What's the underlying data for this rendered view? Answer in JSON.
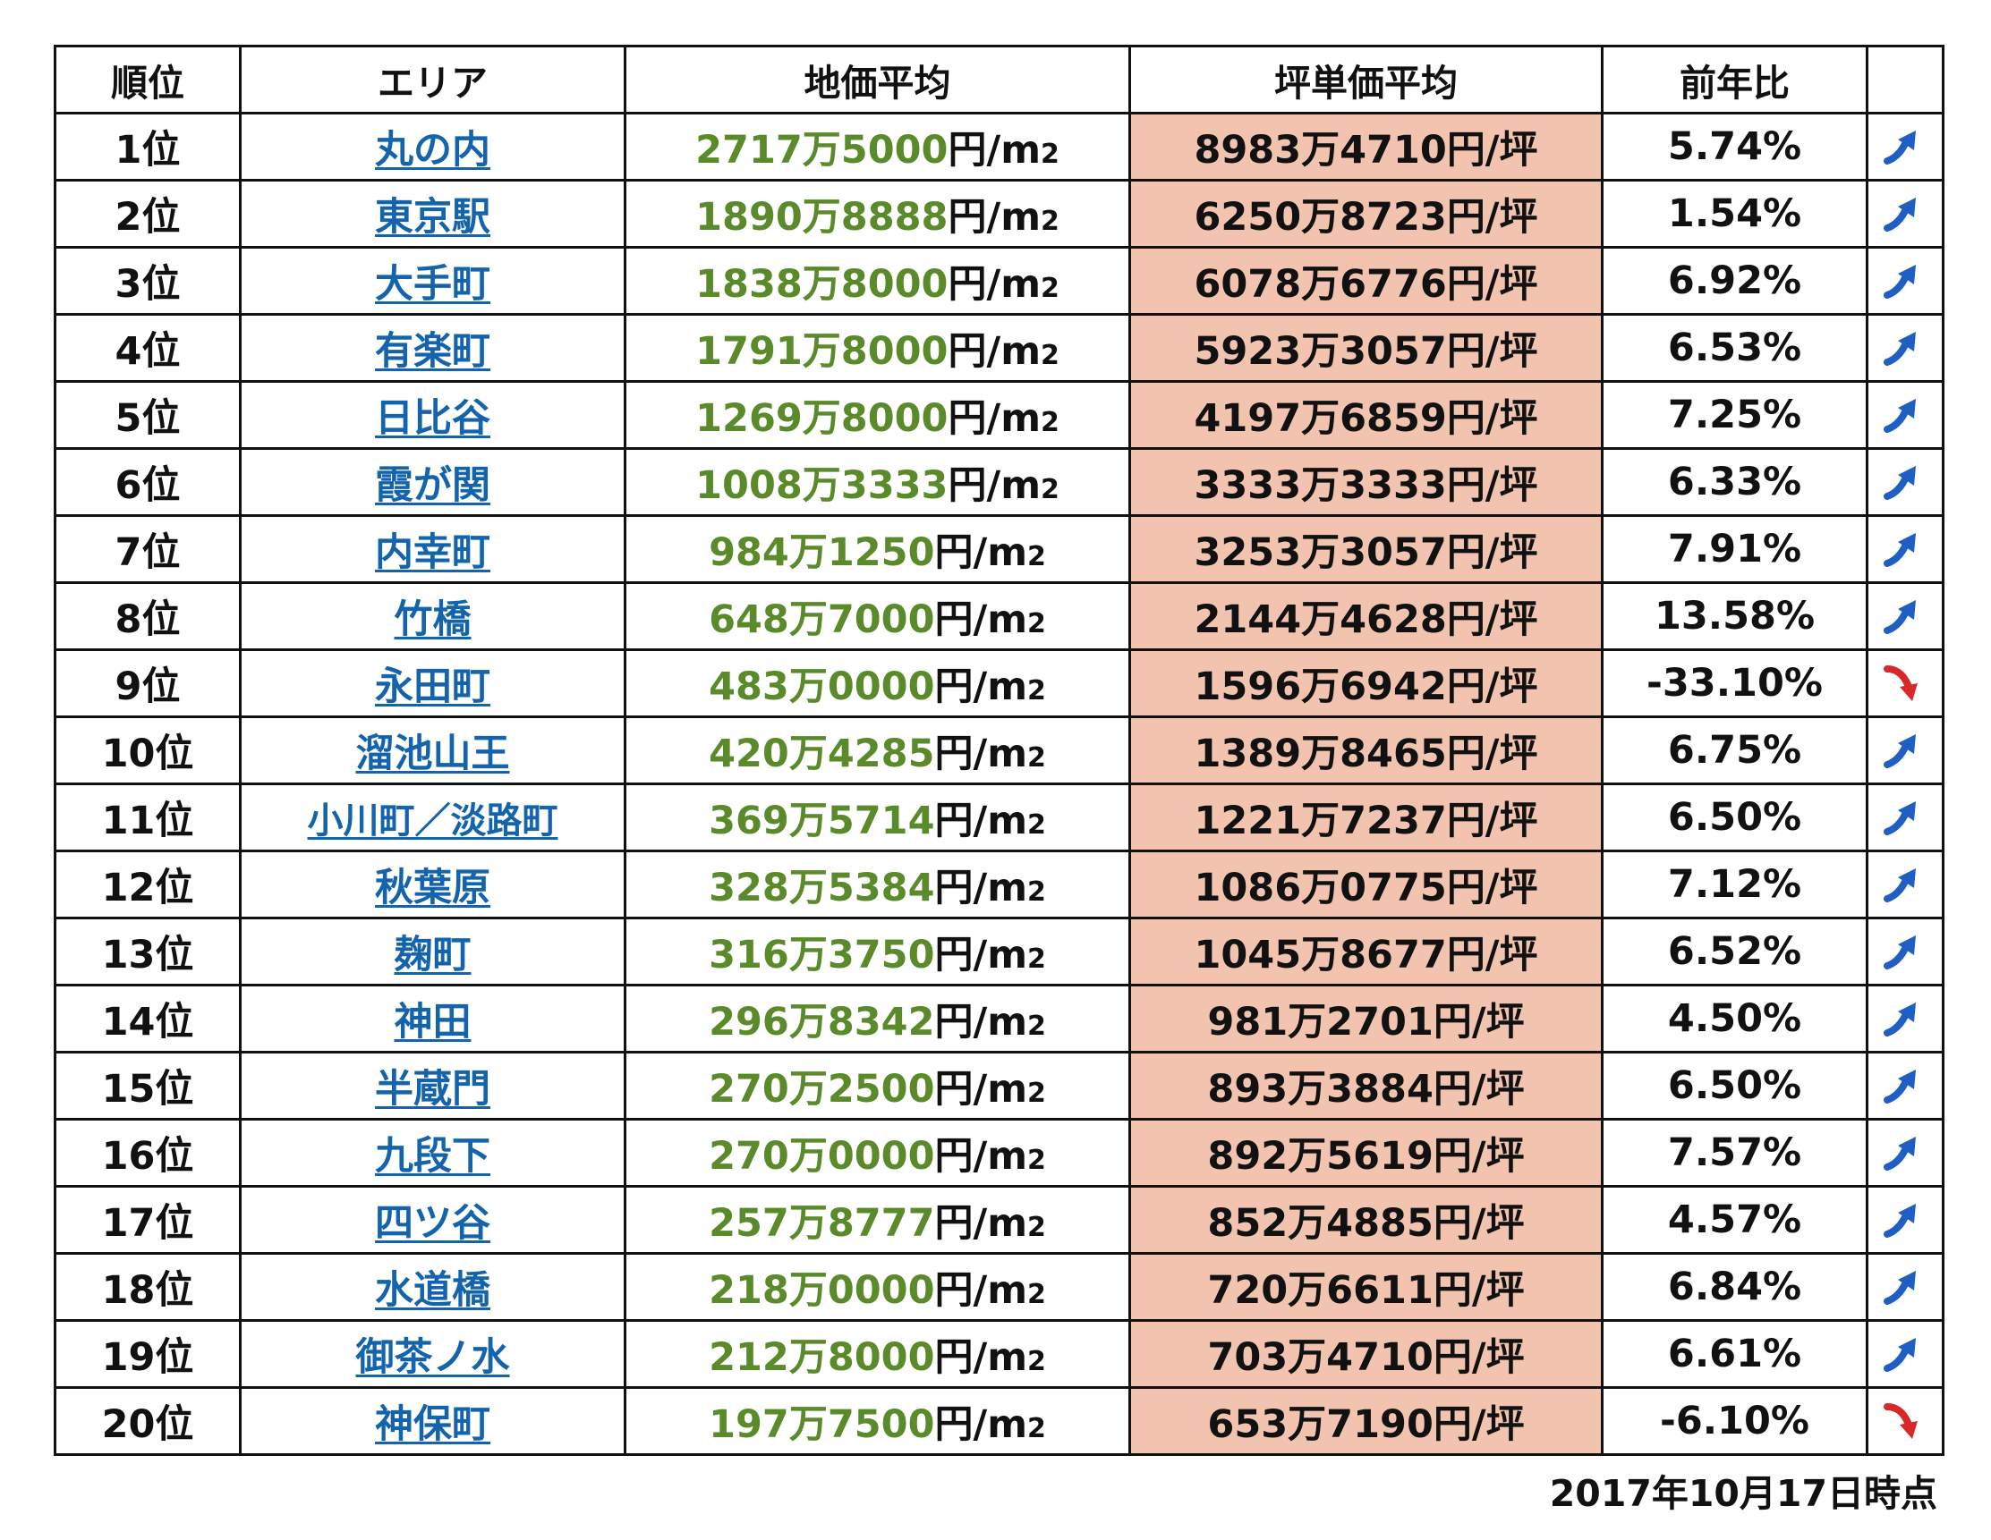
{
  "headers": {
    "rank": "順位",
    "area": "エリア",
    "land_avg": "地価平均",
    "tsubo_avg": "坪単価平均",
    "yoy": "前年比"
  },
  "units": {
    "land": "円/m",
    "land_sub": "2",
    "tsubo": "円/坪"
  },
  "colors": {
    "link": "#1463ad",
    "land_value": "#5a8a2a",
    "tsubo_bg": "#f2c4b0",
    "trend_up": "#1f5fc4",
    "trend_down": "#d7282a"
  },
  "rows": [
    {
      "rank": "1位",
      "area": "丸の内",
      "land": "2717万5000",
      "tsubo": "8983万4710",
      "yoy": "5.74%",
      "trend": "up"
    },
    {
      "rank": "2位",
      "area": "東京駅",
      "land": "1890万8888",
      "tsubo": "6250万8723",
      "yoy": "1.54%",
      "trend": "up"
    },
    {
      "rank": "3位",
      "area": "大手町",
      "land": "1838万8000",
      "tsubo": "6078万6776",
      "yoy": "6.92%",
      "trend": "up"
    },
    {
      "rank": "4位",
      "area": "有楽町",
      "land": "1791万8000",
      "tsubo": "5923万3057",
      "yoy": "6.53%",
      "trend": "up"
    },
    {
      "rank": "5位",
      "area": "日比谷",
      "land": "1269万8000",
      "tsubo": "4197万6859",
      "yoy": "7.25%",
      "trend": "up"
    },
    {
      "rank": "6位",
      "area": "霞が関",
      "land": "1008万3333",
      "tsubo": "3333万3333",
      "yoy": "6.33%",
      "trend": "up"
    },
    {
      "rank": "7位",
      "area": "内幸町",
      "land": "984万1250",
      "tsubo": "3253万3057",
      "yoy": "7.91%",
      "trend": "up"
    },
    {
      "rank": "8位",
      "area": "竹橋",
      "land": "648万7000",
      "tsubo": "2144万4628",
      "yoy": "13.58%",
      "trend": "up"
    },
    {
      "rank": "9位",
      "area": "永田町",
      "land": "483万0000",
      "tsubo": "1596万6942",
      "yoy": "-33.10%",
      "trend": "down"
    },
    {
      "rank": "10位",
      "area": "溜池山王",
      "land": "420万4285",
      "tsubo": "1389万8465",
      "yoy": "6.75%",
      "trend": "up"
    },
    {
      "rank": "11位",
      "area": "小川町／淡路町",
      "land": "369万5714",
      "tsubo": "1221万7237",
      "yoy": "6.50%",
      "trend": "up"
    },
    {
      "rank": "12位",
      "area": "秋葉原",
      "land": "328万5384",
      "tsubo": "1086万0775",
      "yoy": "7.12%",
      "trend": "up"
    },
    {
      "rank": "13位",
      "area": "麹町",
      "land": "316万3750",
      "tsubo": "1045万8677",
      "yoy": "6.52%",
      "trend": "up"
    },
    {
      "rank": "14位",
      "area": "神田",
      "land": "296万8342",
      "tsubo": "981万2701",
      "yoy": "4.50%",
      "trend": "up"
    },
    {
      "rank": "15位",
      "area": "半蔵門",
      "land": "270万2500",
      "tsubo": "893万3884",
      "yoy": "6.50%",
      "trend": "up"
    },
    {
      "rank": "16位",
      "area": "九段下",
      "land": "270万0000",
      "tsubo": "892万5619",
      "yoy": "7.57%",
      "trend": "up"
    },
    {
      "rank": "17位",
      "area": "四ツ谷",
      "land": "257万8777",
      "tsubo": "852万4885",
      "yoy": "4.57%",
      "trend": "up"
    },
    {
      "rank": "18位",
      "area": "水道橋",
      "land": "218万0000",
      "tsubo": "720万6611",
      "yoy": "6.84%",
      "trend": "up"
    },
    {
      "rank": "19位",
      "area": "御茶ノ水",
      "land": "212万8000",
      "tsubo": "703万4710",
      "yoy": "6.61%",
      "trend": "up"
    },
    {
      "rank": "20位",
      "area": "神保町",
      "land": "197万7500",
      "tsubo": "653万7190",
      "yoy": "-6.10%",
      "trend": "down"
    }
  ],
  "footnote": "2017年10月17日時点"
}
